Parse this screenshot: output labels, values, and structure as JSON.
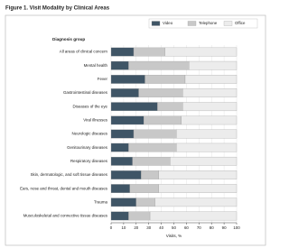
{
  "chart_data": {
    "type": "stacked_barh",
    "title": "Figure 1. Visit Modality by Clinical Areas",
    "category_axis_label": "Diagnosis group",
    "x_label": "Visits, %",
    "categories": [
      "All areas of clinical concern",
      "Mental health",
      "Fever",
      "Gastrointestinal diseases",
      "Diseases of the eye",
      "Viral illnesses",
      "Neurologic diseases",
      "Genitourinary diseases",
      "Respiratory diseases",
      "Skin, dermatologic, and soft tissue diseases",
      "Ears, nose and throat, dental and mouth diseases",
      "Trauma",
      "Musculoskeletal and connective tissue diseases"
    ],
    "series": [
      {
        "name": "Video",
        "color": "#3f5566",
        "values": [
          18,
          14,
          27,
          22,
          37,
          26,
          18,
          14,
          17,
          24,
          15,
          20,
          14
        ]
      },
      {
        "name": "Telephone",
        "color": "#c8c8c8",
        "values": [
          25,
          48,
          32,
          35,
          20,
          30,
          34,
          38,
          30,
          14,
          23,
          15,
          17
        ]
      },
      {
        "name": "Office",
        "color": "#ececec",
        "values": [
          57,
          38,
          41,
          43,
          43,
          44,
          48,
          48,
          53,
          62,
          62,
          65,
          69
        ]
      }
    ],
    "xlim": [
      0,
      100
    ],
    "xticks": [
      0,
      10,
      20,
      30,
      40,
      50,
      60,
      70,
      80,
      90,
      100
    ],
    "legend": "top-right"
  }
}
